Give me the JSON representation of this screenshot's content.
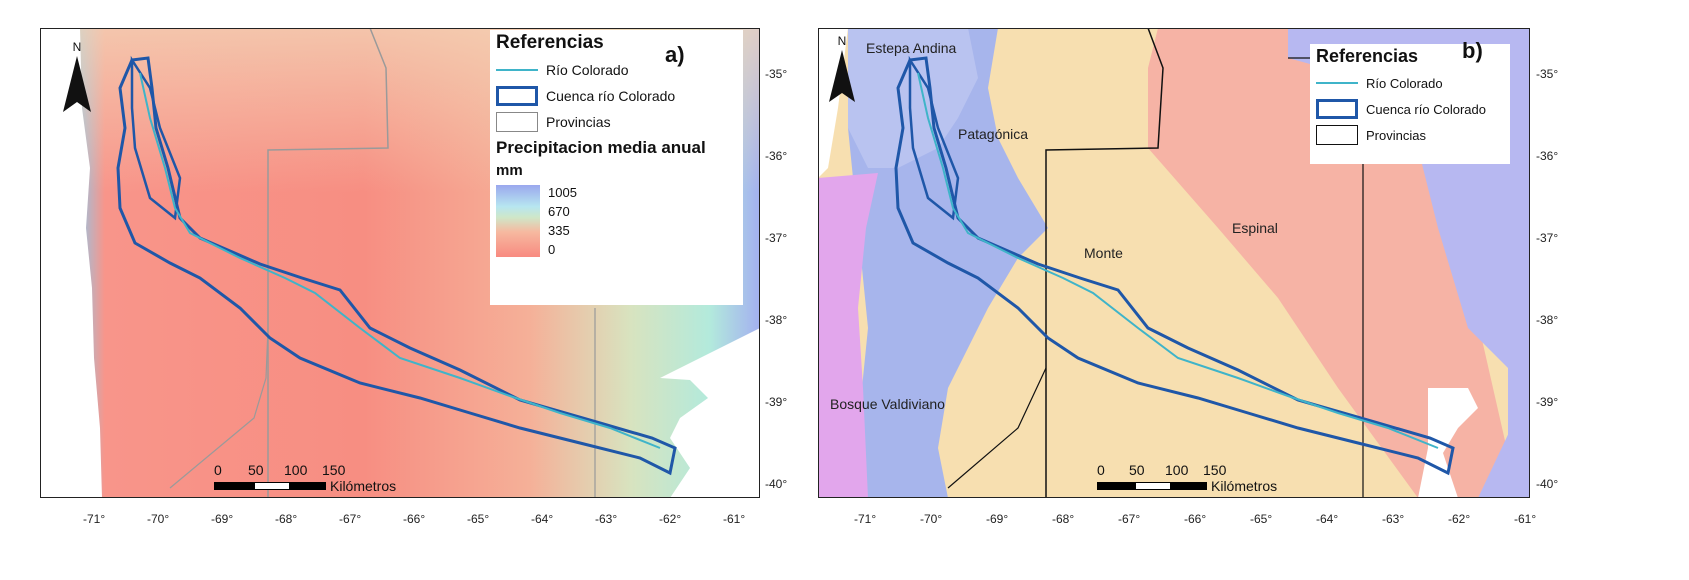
{
  "panels": {
    "a": {
      "letter": "a)",
      "north": "N",
      "legend": {
        "title": "Referencias",
        "river": "Río Colorado",
        "basin": "Cuenca río Colorado",
        "provinces": "Provincias",
        "ramp_title": "Precipitacion media anual",
        "ramp_unit": "mm",
        "ramp_values": [
          "1005",
          "670",
          "335",
          "0"
        ]
      },
      "scale": {
        "numbers": [
          "0",
          "50",
          "100",
          "150"
        ],
        "unit": "Kilómetros"
      },
      "lon_ticks": [
        "-71°",
        "-70°",
        "-69°",
        "-68°",
        "-67°",
        "-66°",
        "-65°",
        "-64°",
        "-63°",
        "-62°",
        "-61°"
      ],
      "lat_ticks": [
        "-35°",
        "-36°",
        "-37°",
        "-38°",
        "-39°",
        "-40°"
      ]
    },
    "b": {
      "letter": "b)",
      "north": "N",
      "legend": {
        "title": "Referencias",
        "river": "Río Colorado",
        "basin": "Cuenca río Colorado",
        "provinces": "Provincias"
      },
      "regions": [
        "Estepa Andina",
        "Patagónica",
        "Monte",
        "Espinal",
        "Bosque Valdiviano"
      ],
      "scale": {
        "numbers": [
          "0",
          "50",
          "100",
          "150"
        ],
        "unit": "Kilómetros"
      },
      "lon_ticks": [
        "-71°",
        "-70°",
        "-69°",
        "-68°",
        "-67°",
        "-66°",
        "-65°",
        "-64°",
        "-63°",
        "-62°",
        "-61°"
      ],
      "lat_ticks": [
        "-35°",
        "-36°",
        "-37°",
        "-38°",
        "-39°",
        "-40°"
      ]
    }
  },
  "colors": {
    "river": "#3fb4c9",
    "basin": "#1f57a8",
    "estepa_andina": "#b9c3f0",
    "patagonica": "#a7b5ec",
    "monte": "#f7dfb0",
    "espinal": "#f6b3a5",
    "bosque_valdiviano": "#e2a6ec",
    "ocean": "#b7b8f1"
  }
}
